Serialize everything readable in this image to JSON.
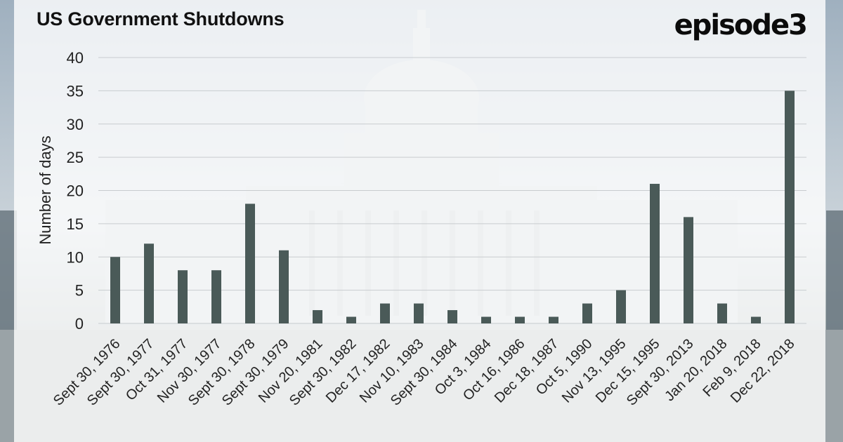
{
  "title": "US Government Shutdowns",
  "brand": "episode3",
  "chart_data": {
    "type": "bar",
    "title": "US Government Shutdowns",
    "xlabel": "",
    "ylabel": "Number of days",
    "ylim": [
      0,
      40
    ],
    "yticks": [
      0,
      5,
      10,
      15,
      20,
      25,
      30,
      35,
      40
    ],
    "grid": "horizontal",
    "bar_color": "#4a5a58",
    "categories": [
      "Sept 30, 1976",
      "Sept 30, 1977",
      "Oct 31, 1977",
      "Nov 30, 1977",
      "Sept 30, 1978",
      "Sept 30, 1979",
      "Nov 20, 1981",
      "Sept 30, 1982",
      "Dec 17, 1982",
      "Nov 10, 1983",
      "Sept 30, 1984",
      "Oct 3, 1984",
      "Oct 16, 1986",
      "Dec 18, 1987",
      "Oct 5, 1990",
      "Nov 13, 1995",
      "Dec 15, 1995",
      "Sept 30, 2013",
      "Jan 20, 2018",
      "Feb 9, 2018",
      "Dec 22, 2018"
    ],
    "values": [
      10,
      12,
      8,
      8,
      18,
      11,
      2,
      1,
      3,
      3,
      2,
      1,
      1,
      1,
      3,
      5,
      21,
      16,
      3,
      1,
      35
    ]
  }
}
